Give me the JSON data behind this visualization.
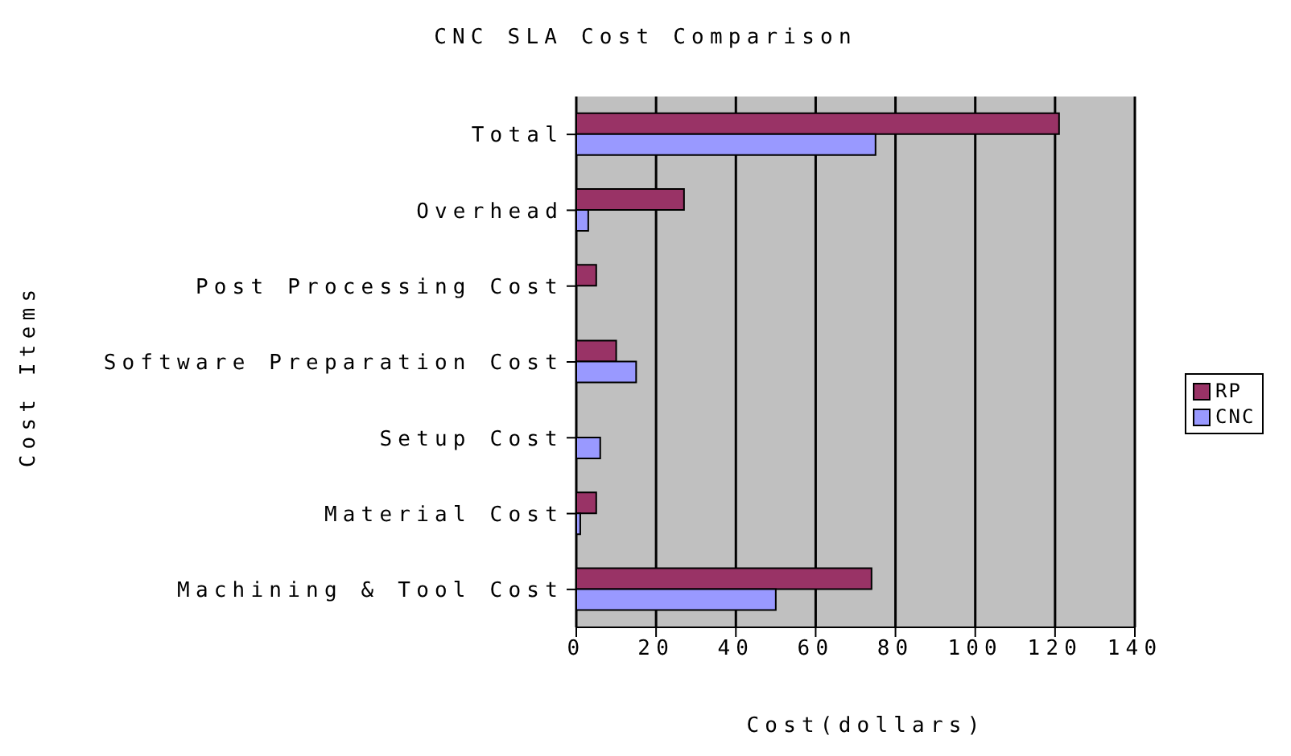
{
  "chart_data": {
    "type": "bar",
    "orientation": "horizontal",
    "title": "CNC SLA Cost Comparison",
    "xlabel": "Cost(dollars)",
    "ylabel": "Cost Items",
    "categories": [
      "Total",
      "Overhead",
      "Post Processing Cost",
      "Software Preparation Cost",
      "Setup Cost",
      "Material Cost",
      "Machining & Tool Cost"
    ],
    "series": [
      {
        "name": "RP",
        "color": "#993366",
        "values": [
          121,
          27,
          5,
          10,
          0,
          5,
          74
        ]
      },
      {
        "name": "CNC",
        "color": "#9999ff",
        "values": [
          75,
          3,
          0,
          15,
          6,
          1,
          50
        ]
      }
    ],
    "xlim": [
      0,
      140
    ],
    "xticks": [
      0,
      20,
      40,
      60,
      80,
      100,
      120,
      140
    ],
    "grid": "x",
    "legend": "right"
  }
}
